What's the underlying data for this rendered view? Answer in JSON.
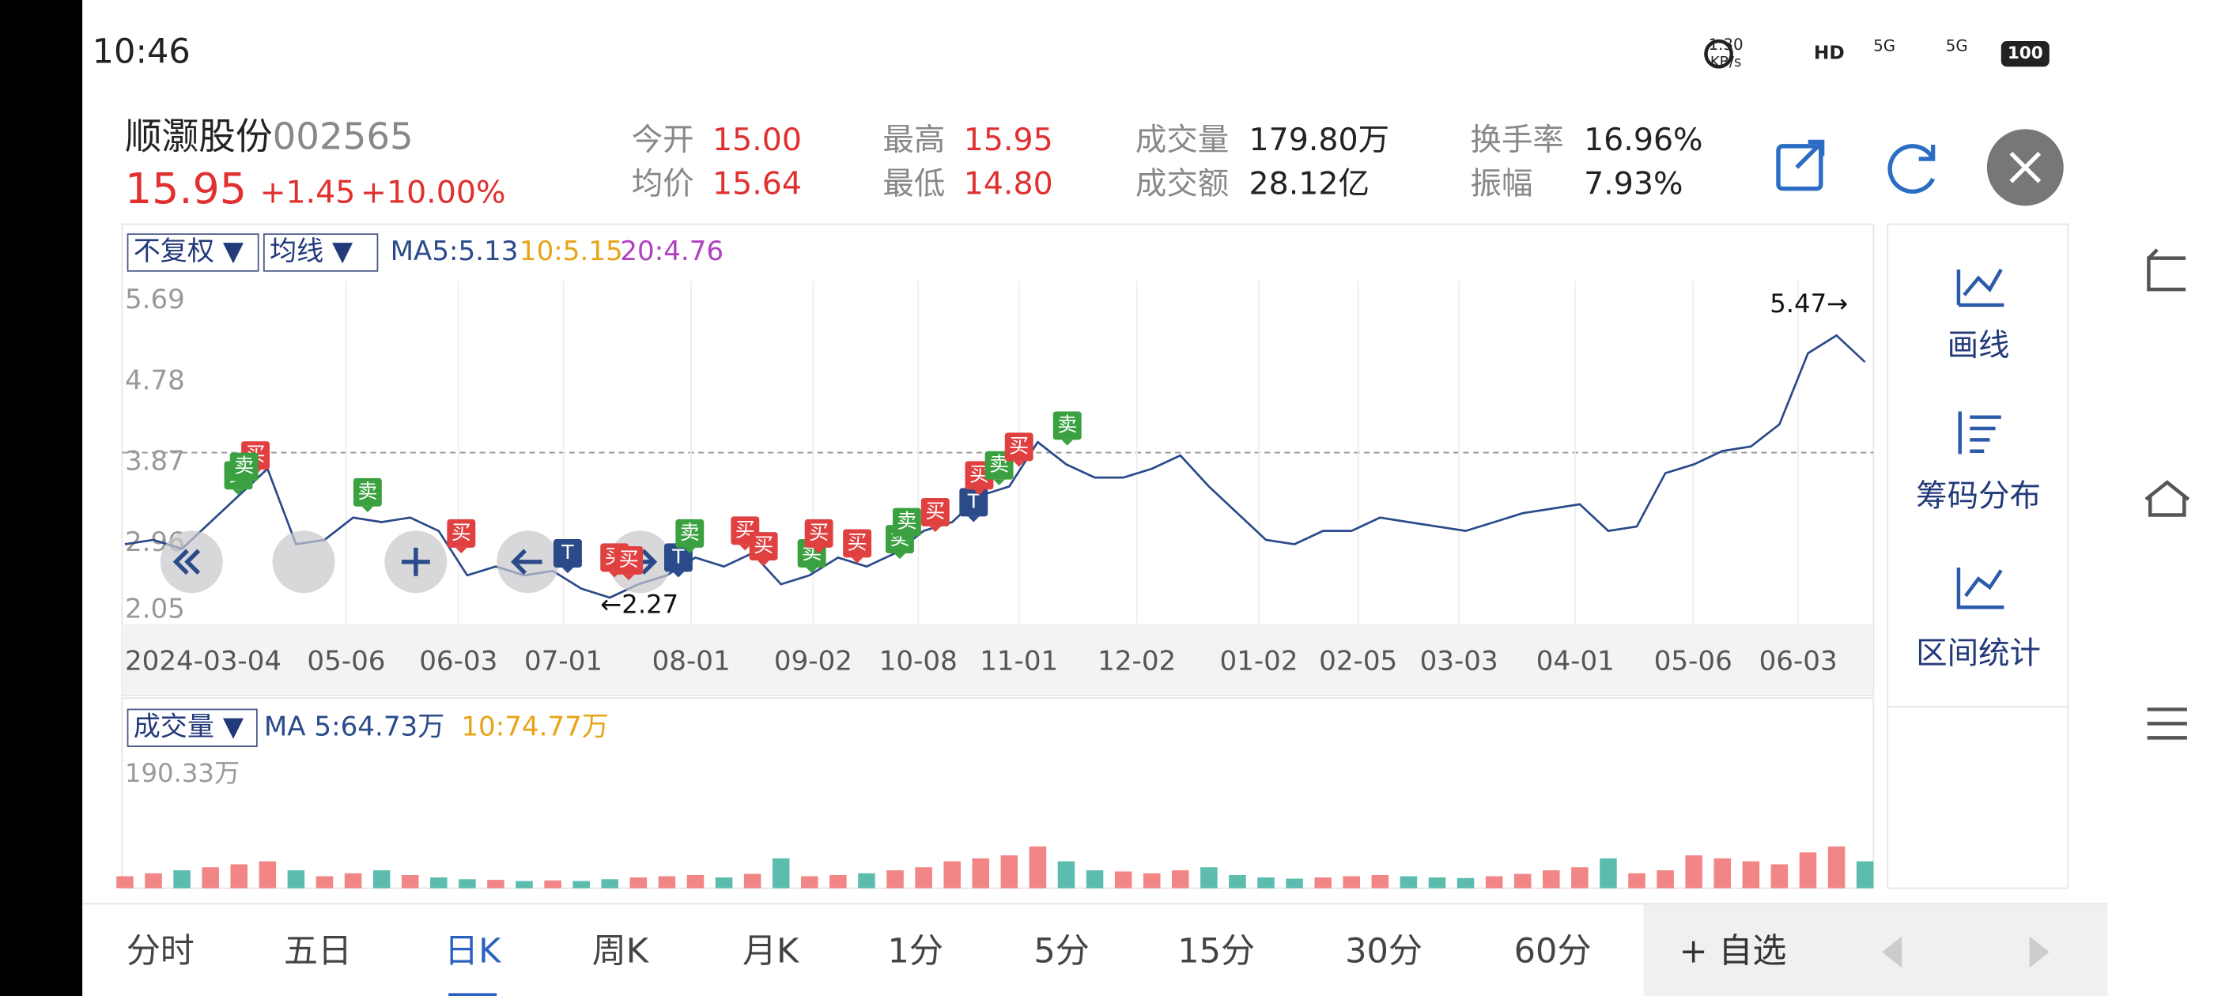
{
  "status_bar": {
    "time": "10:46",
    "speed": "1.30",
    "speed_unit": "KB/s",
    "hd": "HD",
    "net1": "5G",
    "net2": "5G",
    "battery": "100"
  },
  "header": {
    "name": "顺灏股份",
    "code": "002565",
    "price": "15.95",
    "change": "+1.45",
    "change_pct": "+10.00%",
    "stats": [
      {
        "label": "今开",
        "value": "15.00"
      },
      {
        "label": "最高",
        "value": "15.95"
      },
      {
        "label": "成交量",
        "value": "179.80万"
      },
      {
        "label": "换手率",
        "value": "16.96%"
      },
      {
        "label": "均价",
        "value": "15.64"
      },
      {
        "label": "最低",
        "value": "14.80"
      },
      {
        "label": "成交额",
        "value": "28.12亿"
      },
      {
        "label": "振幅",
        "value": "7.93%"
      }
    ]
  },
  "toolbar": {
    "adjust": "不复权 ▼",
    "indicator": "均线 ▼",
    "ma": [
      "MA5:5.13",
      "10:5.15",
      "20:4.76"
    ]
  },
  "price_chart": {
    "y_labels": [
      5.69,
      4.78,
      3.87,
      2.96,
      2.05
    ],
    "x_labels": [
      "2024-03-04",
      "05-06",
      "06-03",
      "07-01",
      "08-01",
      "09-02",
      "10-08",
      "11-01",
      "12-02",
      "01-02",
      "02-05",
      "03-03",
      "04-01",
      "05-06",
      "06-03"
    ],
    "values": [
      2.95,
      3.0,
      2.9,
      3.2,
      3.5,
      3.8,
      2.95,
      3.0,
      3.25,
      3.2,
      3.25,
      3.1,
      2.6,
      2.7,
      2.6,
      2.65,
      2.45,
      2.35,
      2.5,
      2.6,
      2.8,
      2.7,
      2.85,
      2.5,
      2.6,
      2.8,
      2.7,
      2.85,
      3.1,
      3.2,
      3.5,
      3.6,
      4.1,
      3.85,
      3.7,
      3.7,
      3.8,
      3.95,
      3.6,
      3.3,
      3.0,
      2.95,
      3.1,
      3.1,
      3.25,
      3.2,
      3.15,
      3.1,
      3.2,
      3.3,
      3.35,
      3.4,
      3.1,
      3.15,
      3.75,
      3.85,
      4.0,
      4.05,
      4.3,
      5.1,
      5.3,
      5.0
    ],
    "high_label": "5.47→",
    "low_label": "←2.27",
    "markers": [
      "卖",
      "买",
      "卖",
      "卖",
      "买",
      "T",
      "买",
      "买",
      "T",
      "卖",
      "买",
      "买",
      "卖",
      "买",
      "买",
      "卖",
      "卖",
      "买",
      "T",
      "买",
      "卖",
      "买",
      "卖"
    ]
  },
  "volume": {
    "selector": "成交量 ▼",
    "ma": [
      "MA 5:64.73万",
      "10:74.77万"
    ],
    "ymax": {
      "value": 190.33,
      "label": "190.33万"
    },
    "values": [
      20,
      25,
      30,
      35,
      40,
      45,
      30,
      20,
      25,
      30,
      22,
      18,
      15,
      14,
      12,
      13,
      12,
      15,
      18,
      20,
      22,
      18,
      24,
      50,
      20,
      22,
      25,
      30,
      35,
      45,
      50,
      55,
      70,
      45,
      30,
      28,
      25,
      30,
      35,
      22,
      18,
      16,
      18,
      20,
      22,
      20,
      18,
      17,
      20,
      24,
      30,
      35,
      50,
      25,
      30,
      55,
      50,
      45,
      40,
      60,
      70,
      45
    ]
  },
  "side_tools": [
    "画线",
    "筹码分布",
    "区间统计"
  ],
  "tabs": [
    "分时",
    "五日",
    "日K",
    "周K",
    "月K",
    "1分",
    "5分",
    "15分",
    "30分",
    "60分"
  ],
  "add_watch": "+ 自选"
}
